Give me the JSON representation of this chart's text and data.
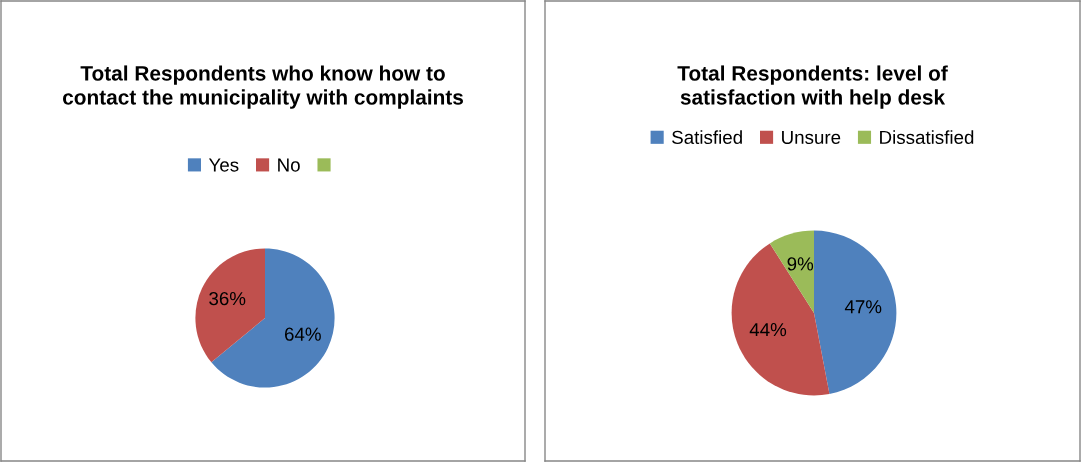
{
  "chart_data": [
    {
      "type": "pie",
      "title": "Total Respondents who know how to contact the municipality with complaints",
      "categories": [
        "Yes",
        "No",
        null
      ],
      "values": [
        64,
        36,
        0
      ],
      "colors": [
        "#4f81bd",
        "#c0504d",
        "#9bbb59"
      ],
      "value_labels": [
        "64%",
        "36%",
        null
      ],
      "legend": "top"
    },
    {
      "type": "pie",
      "title": "Total Respondents: level of satisfaction with help desk",
      "categories": [
        "Satisfied",
        "Unsure",
        "Dissatisfied"
      ],
      "values": [
        47,
        44,
        9
      ],
      "colors": [
        "#4f81bd",
        "#c0504d",
        "#9bbb59"
      ],
      "value_labels": [
        "47%",
        "44%",
        "9%"
      ],
      "legend": "top"
    }
  ]
}
